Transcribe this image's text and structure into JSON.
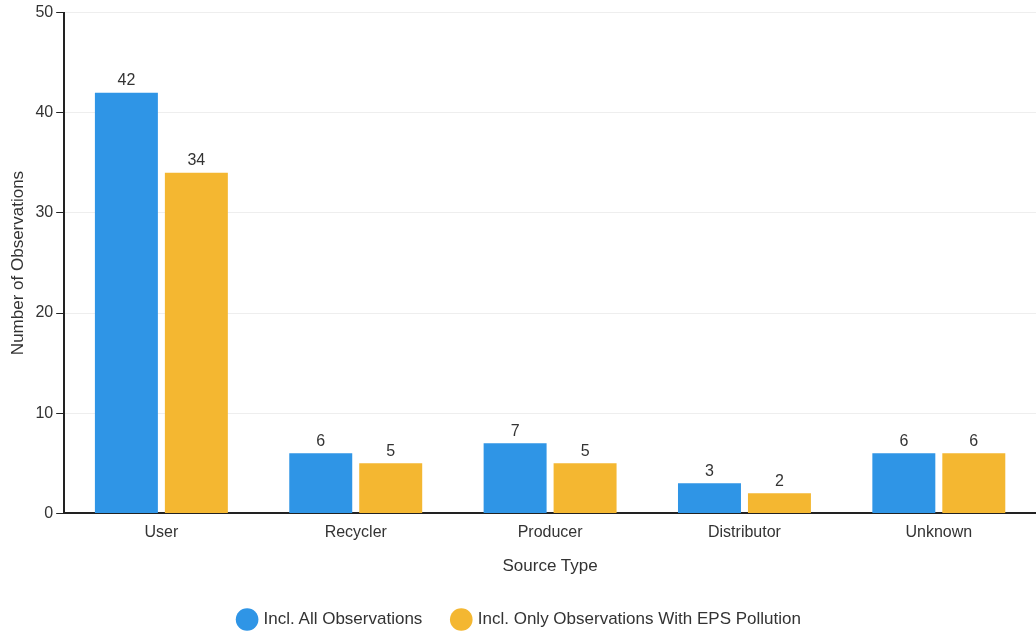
{
  "chart_data": {
    "type": "bar",
    "xlabel": "Source Type",
    "ylabel": "Number of Observations",
    "categories": [
      "User",
      "Recycler",
      "Producer",
      "Distributor",
      "Unknown"
    ],
    "series": [
      {
        "name": "Incl. All Observations",
        "color": "#2f95e6",
        "values": [
          42,
          6,
          7,
          3,
          6
        ]
      },
      {
        "name": "Incl. Only Observations With EPS Pollution",
        "color": "#f4b731",
        "values": [
          34,
          5,
          5,
          2,
          6
        ]
      }
    ],
    "ylim": [
      0,
      50
    ],
    "yticks": [
      0,
      10,
      20,
      30,
      40,
      50
    ],
    "grid": "y",
    "legend": "bottom",
    "data_labels": true
  }
}
